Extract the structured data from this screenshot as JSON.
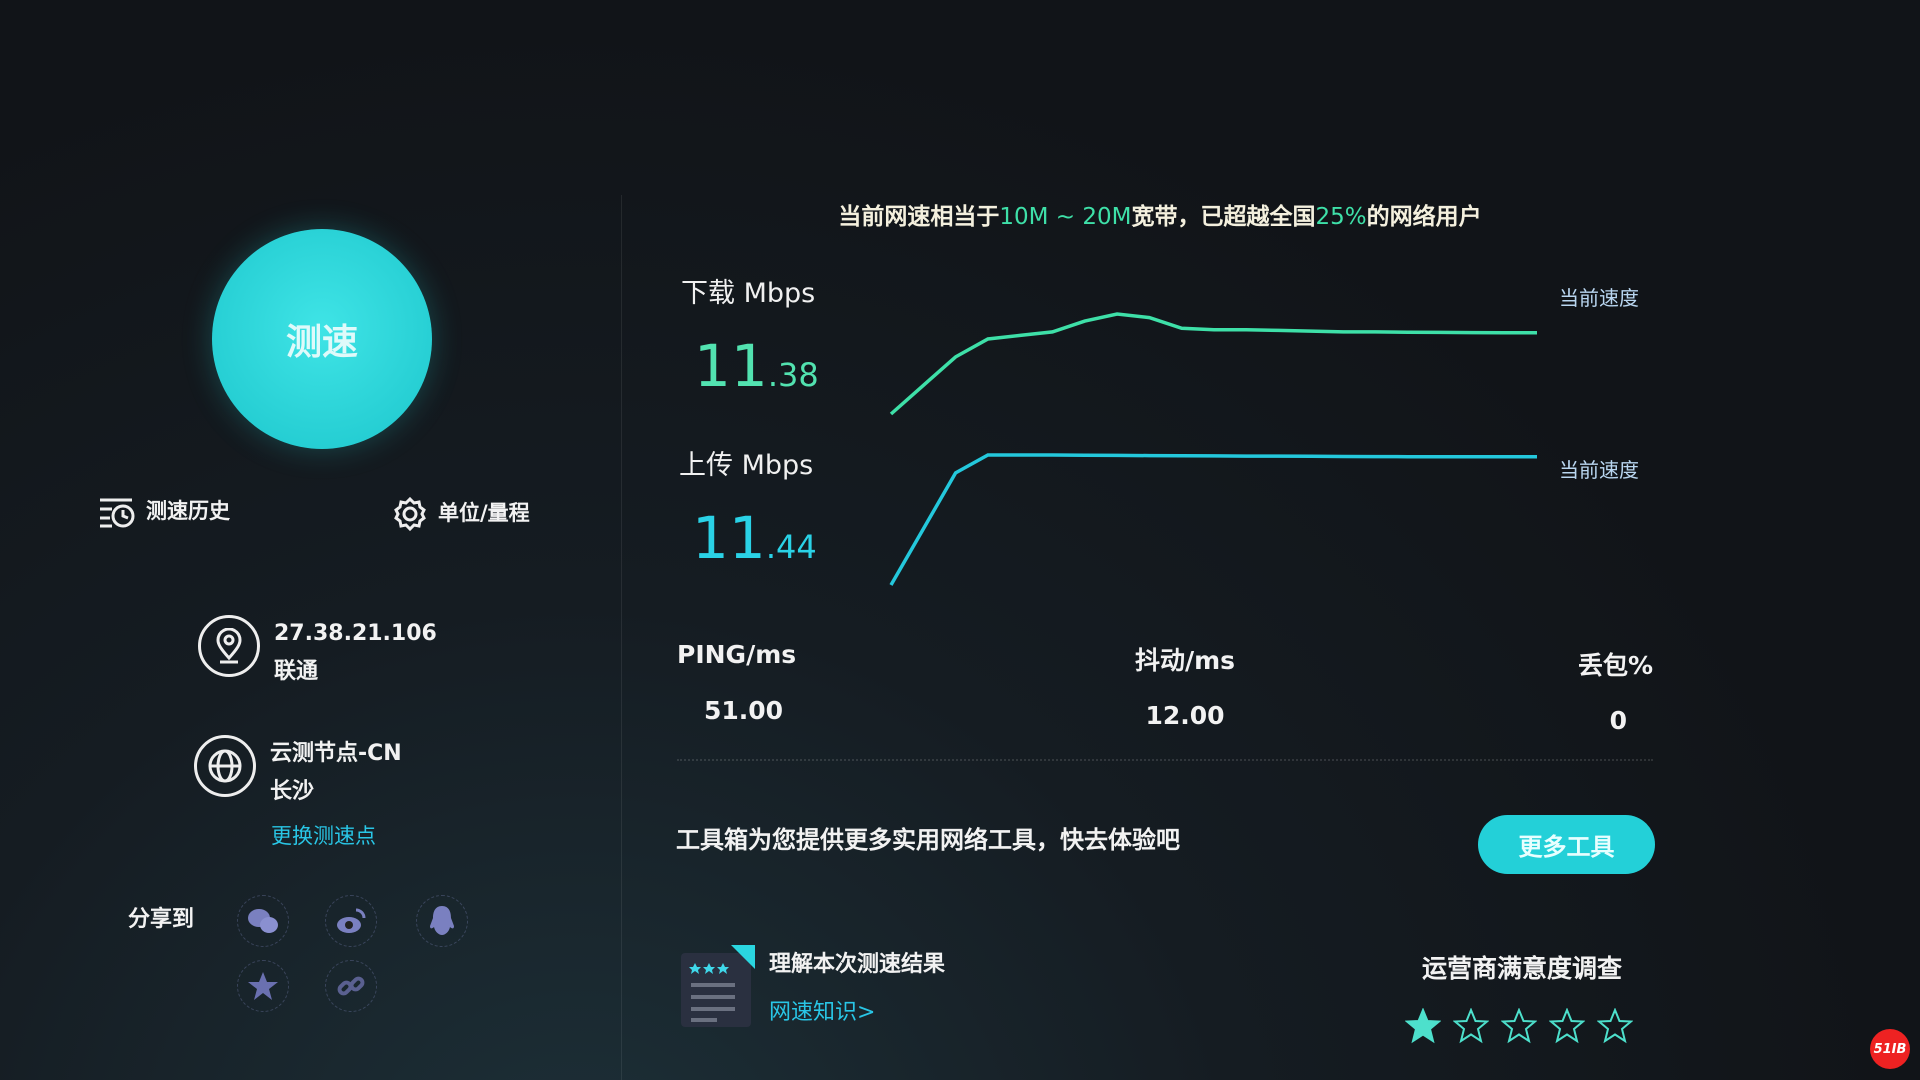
{
  "left": {
    "start_button": "测速",
    "history": "测速历史",
    "settings": "单位/量程",
    "ip": "27.38.21.106",
    "isp": "联通",
    "node": "云测节点-CN",
    "city": "长沙",
    "change_node": "更换测速点",
    "share_label": "分享到",
    "share_icons": [
      "wechat-icon",
      "weibo-icon",
      "qq-icon",
      "qzone-icon",
      "link-icon"
    ]
  },
  "headline": {
    "prefix": "当前网速相当于",
    "range": "10M ~ 20M",
    "mid": "宽带，已超越全国",
    "percent": "25%",
    "suffix": "的网络用户"
  },
  "download": {
    "label": "下载 Mbps",
    "int": "11",
    "dec": ".38",
    "current": "当前速度",
    "color": "#3ee0a8"
  },
  "upload": {
    "label": "上传 Mbps",
    "int": "11",
    "dec": ".44",
    "current": "当前速度",
    "color": "#24c8dc"
  },
  "stats": [
    {
      "label": "PING/ms",
      "value": "51.00"
    },
    {
      "label": "抖动/ms",
      "value": "12.00"
    },
    {
      "label": "丢包%",
      "value": "0"
    }
  ],
  "toolbox": {
    "text": "工具箱为您提供更多实用网络工具，快去体验吧",
    "button": "更多工具"
  },
  "knowledge": {
    "title": "理解本次测速结果",
    "link": "网速知识>"
  },
  "survey": {
    "title": "运营商满意度调查",
    "rating": 1,
    "max": 5,
    "star_color": "#4de0cc"
  },
  "watermark": "51IB",
  "chart_data": [
    {
      "type": "line",
      "name": "download",
      "values": [
        0,
        4,
        8,
        10.5,
        11,
        11.5,
        13,
        14,
        13.5,
        12,
        11.8,
        11.8,
        11.7,
        11.6,
        11.5,
        11.5,
        11.45,
        11.42,
        11.4,
        11.38,
        11.38
      ]
    },
    {
      "type": "line",
      "name": "upload",
      "values": [
        0,
        5,
        10,
        11.6,
        11.6,
        11.6,
        11.58,
        11.56,
        11.55,
        11.53,
        11.52,
        11.5,
        11.5,
        11.48,
        11.47,
        11.46,
        11.45,
        11.45,
        11.44,
        11.44,
        11.44
      ]
    }
  ]
}
